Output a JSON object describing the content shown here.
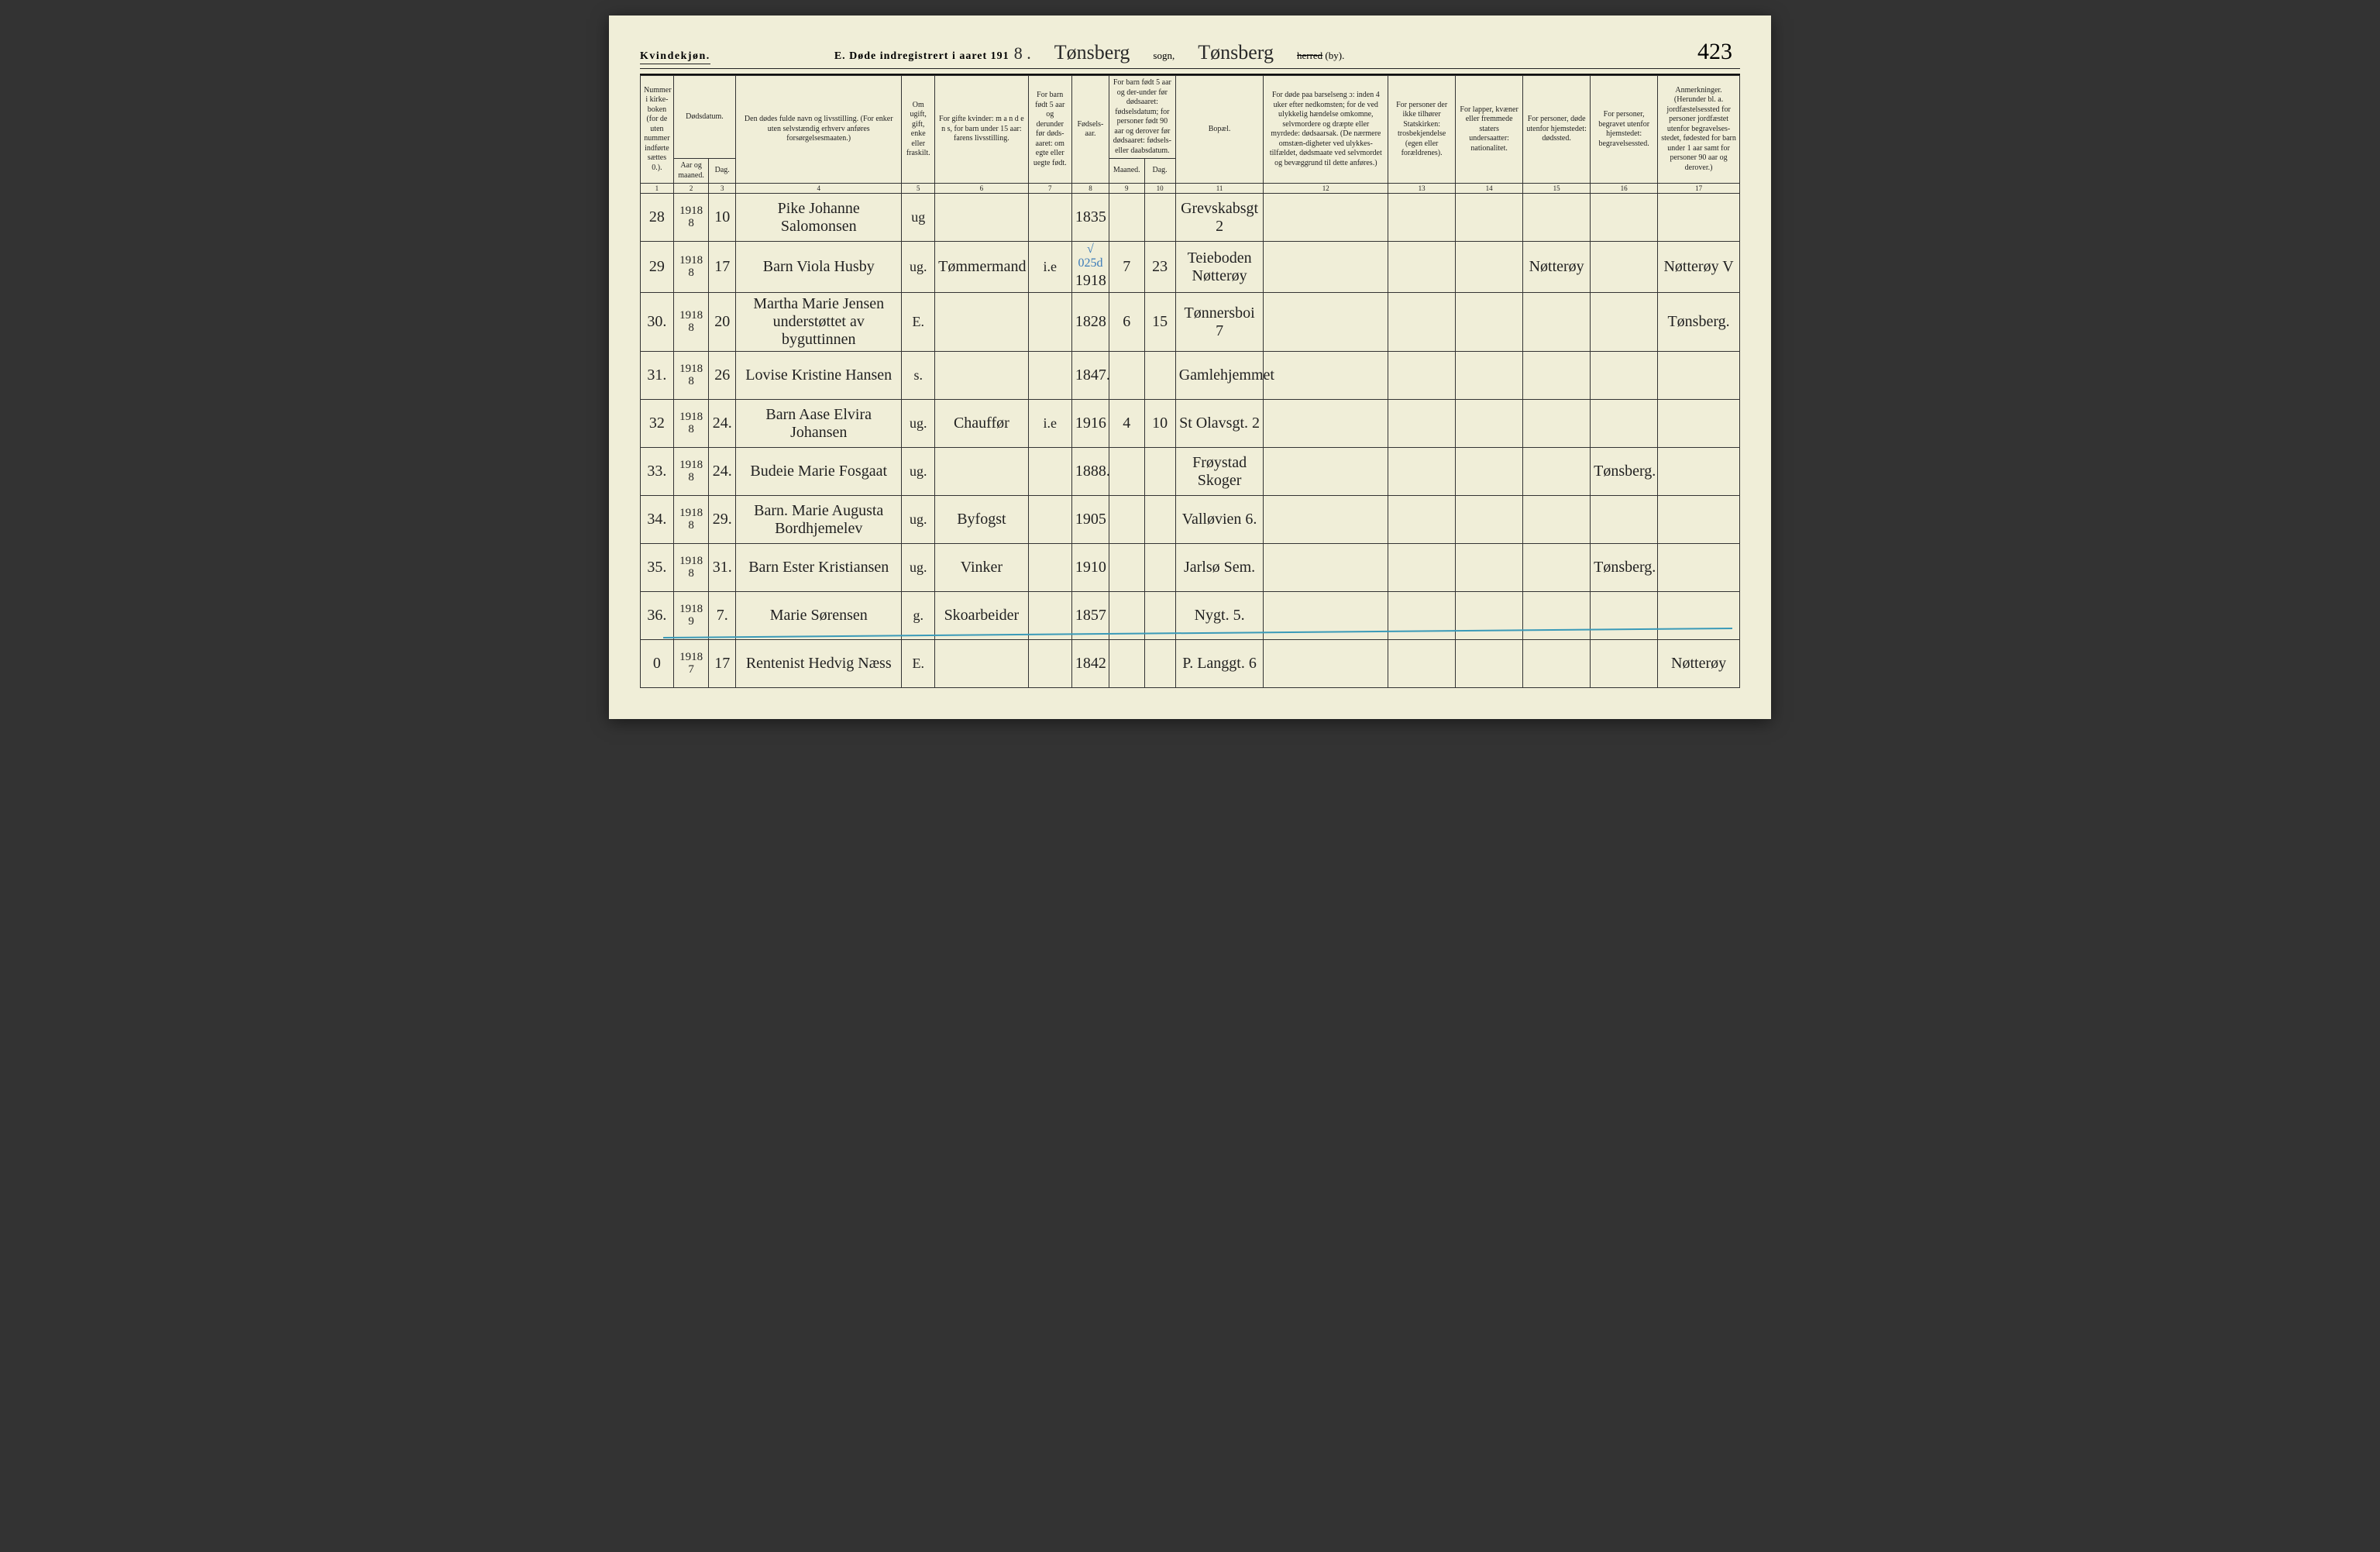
{
  "header": {
    "gender_label": "Kvindekjøn.",
    "section_title": "E.  Døde indregistrert i aaret 191",
    "year_digit": "8 .",
    "parish_script": "Tønsberg",
    "sogn_label": "sogn,",
    "district_script": "Tønsberg",
    "herred_struck": "herred",
    "by_label": "(by).",
    "page_number": "423"
  },
  "columns": {
    "c1": "Nummer i kirke-boken (for de uten nummer indførte sættes 0.).",
    "c2_3_top": "Dødsdatum.",
    "c2": "Aar og maaned.",
    "c3": "Dag.",
    "c4": "Den dødes fulde navn og livsstilling. (For enker uten selvstændig erhverv anføres forsørgelsesmaaten.)",
    "c5": "Om ugift, gift, enke eller fraskilt.",
    "c6": "For gifte kvinder: m a n d e n s, for barn under 15 aar: farens livsstilling.",
    "c7": "For barn født 5 aar og derunder før døds-aaret: om egte eller uegte født.",
    "c8": "Fødsels-aar.",
    "c9_10_top": "For barn født 5 aar og der-under før dødsaaret: fødselsdatum; for personer født 90 aar og derover før dødsaaret: fødsels- eller daabsdatum.",
    "c9": "Maaned.",
    "c10": "Dag.",
    "c11": "Bopæl.",
    "c12": "For døde paa barselseng ɔ: inden 4 uker efter nedkomsten; for de ved ulykkelig hændelse omkomne, selvmordere og dræpte eller myrdede: dødsaarsak. (De nærmere omstæn-digheter ved ulykkes-tilfældet, dødsmaate ved selvmordet og bevæggrund til dette anføres.)",
    "c13": "For personer der ikke tilhører Statskirken: trosbekjendelse (egen eller forældrenes).",
    "c14": "For lapper, kvæner eller fremmede staters undersaatter: nationalitet.",
    "c15": "For personer, døde utenfor hjemstedet: dødssted.",
    "c16": "For personer, begravet utenfor hjemstedet: begravelsessted.",
    "c17": "Anmerkninger. (Herunder bl. a. jordfæstelsessted for personer jordfæstet utenfor begravelses-stedet, fødested for barn under 1 aar samt for personer 90 aar og derover.)"
  },
  "colnums": [
    "1",
    "2",
    "3",
    "4",
    "5",
    "6",
    "7",
    "8",
    "9",
    "10",
    "11",
    "12",
    "13",
    "14",
    "15",
    "16",
    "17"
  ],
  "rows": [
    {
      "n": "28",
      "ym": "1918\n8",
      "d": "10",
      "name": "Pike Johanne Salomonsen",
      "stat": "ug",
      "occ": "",
      "leg": "",
      "fy": "1835",
      "m": "",
      "dg": "",
      "res": "Grevskabsgt 2",
      "c12": "",
      "c13": "",
      "c14": "",
      "c15": "",
      "c16": "",
      "c17": "",
      "annot": ""
    },
    {
      "n": "29",
      "ym": "1918\n8",
      "d": "17",
      "name": "Barn Viola Husby",
      "stat": "ug.",
      "occ": "Tømmermand",
      "leg": "i.e",
      "fy": "1918",
      "m": "7",
      "dg": "23",
      "res": "Teieboden Nøtterøy",
      "c12": "",
      "c13": "",
      "c14": "",
      "c15": "Nøtterøy",
      "c16": "",
      "c17": "Nøtterøy V",
      "annot": "√ 025d"
    },
    {
      "n": "30.",
      "ym": "1918\n8",
      "d": "20",
      "name": "Martha Marie Jensen  understøttet av byguttinnen",
      "stat": "E.",
      "occ": "",
      "leg": "",
      "fy": "1828",
      "m": "6",
      "dg": "15",
      "res": "Tønnersboi 7",
      "c12": "",
      "c13": "",
      "c14": "",
      "c15": "",
      "c16": "",
      "c17": "Tønsberg.",
      "annot": ""
    },
    {
      "n": "31.",
      "ym": "1918\n8",
      "d": "26",
      "name": "Lovise Kristine Hansen",
      "stat": "s.",
      "occ": "",
      "leg": "",
      "fy": "1847.",
      "m": "",
      "dg": "",
      "res": "Gamlehjemmet",
      "c12": "",
      "c13": "",
      "c14": "",
      "c15": "",
      "c16": "",
      "c17": "",
      "annot": ""
    },
    {
      "n": "32",
      "ym": "1918\n8",
      "d": "24.",
      "name": "Barn Aase Elvira Johansen",
      "stat": "ug.",
      "occ": "Chauffør",
      "leg": "i.e",
      "fy": "1916",
      "m": "4",
      "dg": "10",
      "res": "St Olavsgt. 2",
      "c12": "",
      "c13": "",
      "c14": "",
      "c15": "",
      "c16": "",
      "c17": "",
      "annot": ""
    },
    {
      "n": "33.",
      "ym": "1918\n8",
      "d": "24.",
      "name": "Budeie Marie Fosgaat",
      "stat": "ug.",
      "occ": "",
      "leg": "",
      "fy": "1888.",
      "m": "",
      "dg": "",
      "res": "Frøystad Skoger",
      "c12": "",
      "c13": "",
      "c14": "",
      "c15": "",
      "c16": "Tønsberg.",
      "c17": "",
      "annot": ""
    },
    {
      "n": "34.",
      "ym": "1918\n8",
      "d": "29.",
      "name": "Barn. Marie Augusta Bordhjemelev",
      "stat": "ug.",
      "occ": "Byfogst",
      "leg": "",
      "fy": "1905",
      "m": "",
      "dg": "",
      "res": "Valløvien 6.",
      "c12": "",
      "c13": "",
      "c14": "",
      "c15": "",
      "c16": "",
      "c17": "",
      "annot": ""
    },
    {
      "n": "35.",
      "ym": "1918\n8",
      "d": "31.",
      "name": "Barn Ester Kristiansen",
      "stat": "ug.",
      "occ": "Vinker",
      "leg": "",
      "fy": "1910",
      "m": "",
      "dg": "",
      "res": "Jarlsø Sem.",
      "c12": "",
      "c13": "",
      "c14": "",
      "c15": "",
      "c16": "Tønsberg.",
      "c17": "",
      "annot": ""
    },
    {
      "n": "36.",
      "ym": "1918\n9",
      "d": "7.",
      "name": "Marie Sørensen",
      "stat": "g.",
      "occ": "Skoarbeider",
      "leg": "",
      "fy": "1857",
      "m": "",
      "dg": "",
      "res": "Nygt. 5.",
      "c12": "",
      "c13": "",
      "c14": "",
      "c15": "",
      "c16": "",
      "c17": "",
      "annot": ""
    },
    {
      "n": "0",
      "ym": "1918\n7",
      "d": "17",
      "name": "Rentenist Hedvig Næss",
      "stat": "E.",
      "occ": "",
      "leg": "",
      "fy": "1842",
      "m": "",
      "dg": "",
      "res": "P. Langgt. 6",
      "c12": "",
      "c13": "",
      "c14": "",
      "c15": "",
      "c16": "",
      "c17": "Nøtterøy",
      "annot": ""
    }
  ],
  "colors": {
    "paper": "#f0eed8",
    "ink": "#222222",
    "rule": "#333333",
    "blue": "#3a9ab8"
  },
  "col_widths_pct": [
    3.2,
    3.4,
    2.6,
    16,
    3.2,
    9,
    4.2,
    3.6,
    3.4,
    3.0,
    8.5,
    12,
    6.5,
    6.5,
    6.5,
    6.5,
    7.9
  ]
}
